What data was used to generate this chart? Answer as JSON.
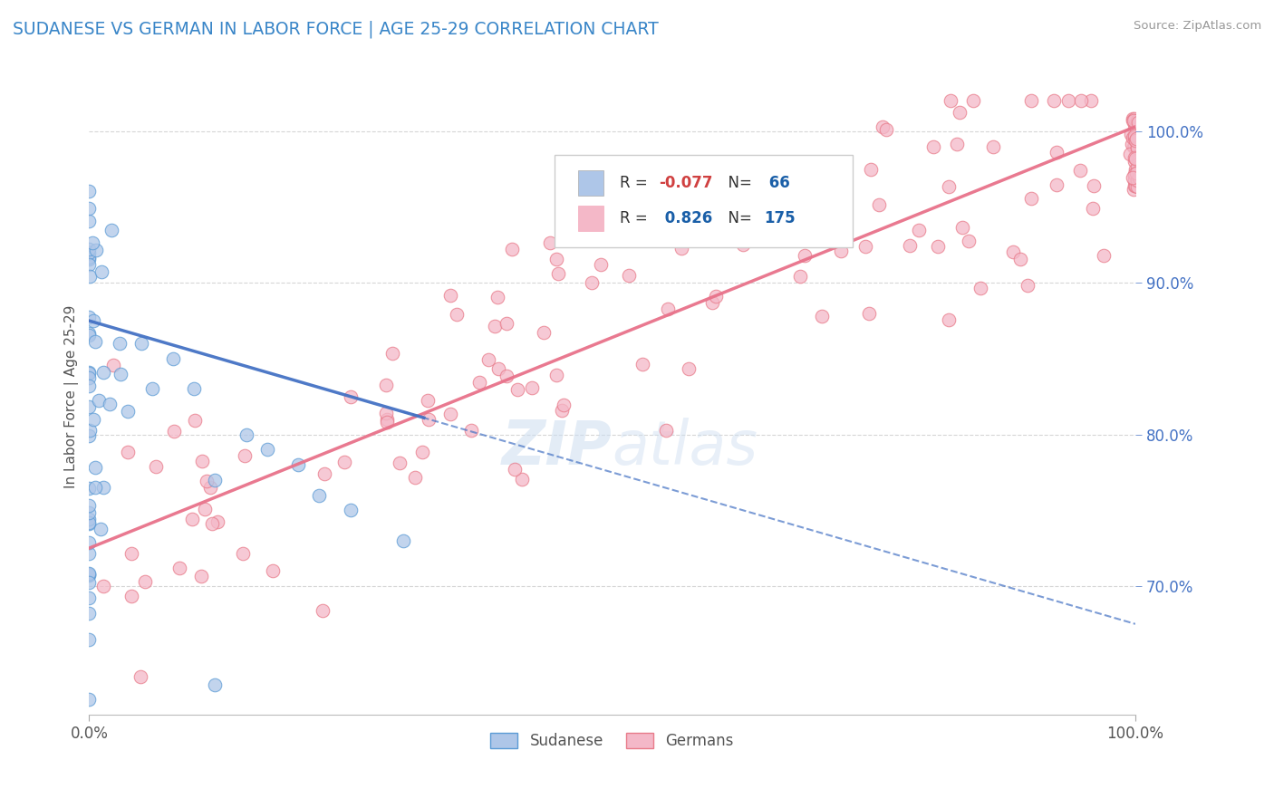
{
  "title": "SUDANESE VS GERMAN IN LABOR FORCE | AGE 25-29 CORRELATION CHART",
  "source": "Source: ZipAtlas.com",
  "ylabel": "In Labor Force | Age 25-29",
  "xlim": [
    0.0,
    1.0
  ],
  "ylim": [
    0.615,
    1.035
  ],
  "sudanese_R": -0.077,
  "sudanese_N": 66,
  "german_R": 0.826,
  "german_N": 175,
  "sudanese_fill_color": "#aec6e8",
  "sudanese_edge_color": "#5b9bd5",
  "german_fill_color": "#f4b8c8",
  "german_edge_color": "#e87b8a",
  "sudanese_line_color": "#4472c4",
  "german_line_color": "#e8728a",
  "watermark_color": "#ccddf0",
  "background_color": "#ffffff",
  "grid_color": "#cccccc",
  "title_color": "#3a86c8",
  "right_tick_color": "#4472c4",
  "grid_levels": [
    0.7,
    0.8,
    0.9,
    1.0
  ],
  "legend_R1": "R = -0.077",
  "legend_N1": "N =  66",
  "legend_R2": "R =  0.826",
  "legend_N2": "N = 175"
}
